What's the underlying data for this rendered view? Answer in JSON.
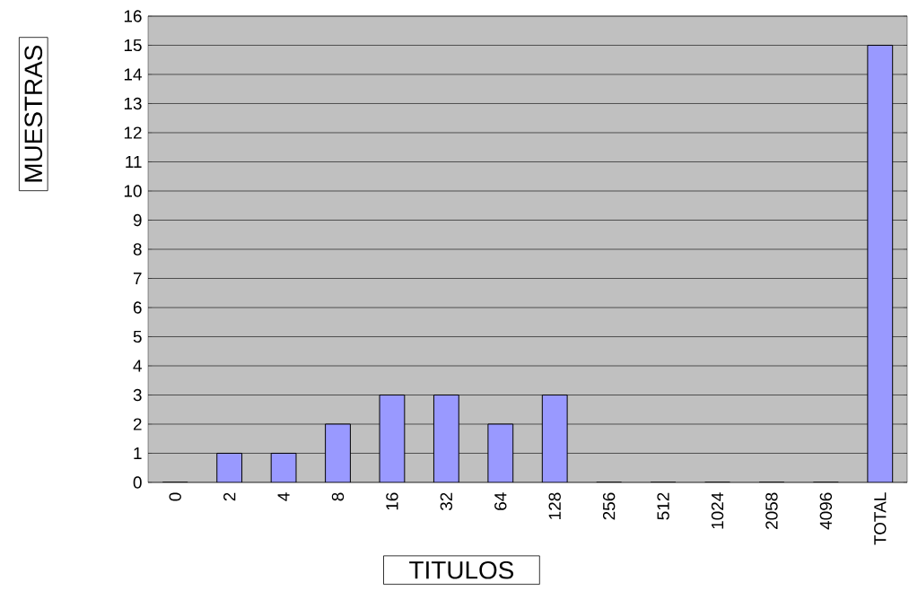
{
  "chart_data": {
    "type": "bar",
    "xlabel": "TITULOS",
    "ylabel": "MUESTRAS",
    "categories": [
      "0",
      "2",
      "4",
      "8",
      "16",
      "32",
      "64",
      "128",
      "256",
      "512",
      "1024",
      "2058",
      "4096",
      "TOTAL"
    ],
    "values": [
      0,
      1,
      1,
      2,
      3,
      3,
      2,
      3,
      0,
      0,
      0,
      0,
      0,
      15
    ],
    "color": "#9999ff",
    "ylim": [
      0,
      16
    ],
    "yticks": [
      0,
      1,
      2,
      3,
      4,
      5,
      6,
      7,
      8,
      9,
      10,
      11,
      12,
      13,
      14,
      15,
      16
    ],
    "grid": "y"
  }
}
